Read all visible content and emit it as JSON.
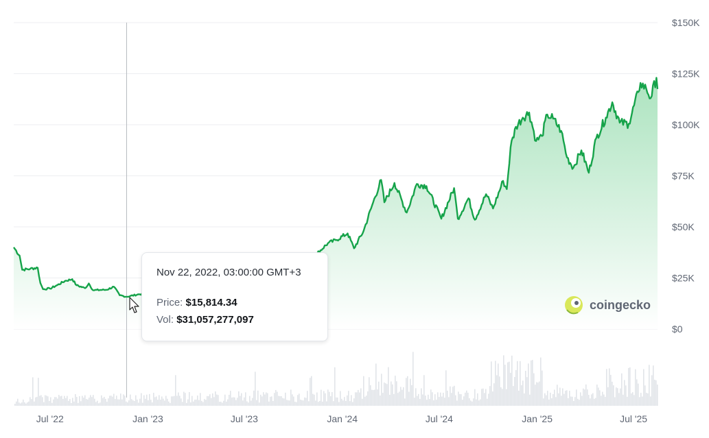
{
  "chart_data": {
    "type": "area",
    "title": "",
    "xlabel": "",
    "ylabel": "",
    "x_ticks": [
      "Jul '22",
      "Jan '23",
      "Jul '23",
      "Jan '24",
      "Jul '24",
      "Jan '25",
      "Jul '25"
    ],
    "y_ticks": [
      "$150K",
      "$125K",
      "$100K",
      "$75K",
      "$50K",
      "$25K",
      "$0"
    ],
    "ylim": [
      0,
      150000
    ],
    "xlim": [
      "2022-04-24",
      "2025-08-15"
    ],
    "grid": true,
    "series": [
      {
        "name": "Price",
        "color": "#16a34a",
        "points": [
          [
            "2022-04-24",
            40000
          ],
          [
            "2022-05-05",
            36000
          ],
          [
            "2022-05-10",
            29000
          ],
          [
            "2022-05-25",
            29500
          ],
          [
            "2022-06-08",
            30000
          ],
          [
            "2022-06-13",
            22500
          ],
          [
            "2022-06-18",
            19500
          ],
          [
            "2022-07-01",
            19800
          ],
          [
            "2022-07-15",
            21500
          ],
          [
            "2022-07-29",
            23500
          ],
          [
            "2022-08-12",
            24400
          ],
          [
            "2022-08-20",
            21400
          ],
          [
            "2022-09-05",
            20000
          ],
          [
            "2022-09-12",
            22300
          ],
          [
            "2022-09-20",
            19000
          ],
          [
            "2022-10-15",
            19200
          ],
          [
            "2022-10-29",
            20700
          ],
          [
            "2022-11-09",
            16500
          ],
          [
            "2022-11-22",
            15814.34
          ],
          [
            "2022-12-15",
            17000
          ],
          [
            "2023-01-10",
            17400
          ],
          [
            "2023-01-25",
            22800
          ],
          [
            "2023-02-20",
            24500
          ],
          [
            "2023-03-10",
            20200
          ],
          [
            "2023-03-20",
            28000
          ],
          [
            "2023-04-14",
            30400
          ],
          [
            "2023-05-10",
            27500
          ],
          [
            "2023-06-15",
            25000
          ],
          [
            "2023-06-23",
            30500
          ],
          [
            "2023-07-15",
            30300
          ],
          [
            "2023-08-17",
            26200
          ],
          [
            "2023-09-11",
            25200
          ],
          [
            "2023-10-01",
            27500
          ],
          [
            "2023-10-24",
            34500
          ],
          [
            "2023-11-15",
            37000
          ],
          [
            "2023-12-05",
            42000
          ],
          [
            "2023-12-20",
            43500
          ],
          [
            "2024-01-11",
            46800
          ],
          [
            "2024-01-23",
            39500
          ],
          [
            "2024-02-10",
            48000
          ],
          [
            "2024-02-28",
            62000
          ],
          [
            "2024-03-14",
            73000
          ],
          [
            "2024-03-20",
            62000
          ],
          [
            "2024-04-08",
            71500
          ],
          [
            "2024-05-01",
            57000
          ],
          [
            "2024-05-20",
            71000
          ],
          [
            "2024-06-07",
            70000
          ],
          [
            "2024-07-05",
            54000
          ],
          [
            "2024-07-29",
            69000
          ],
          [
            "2024-08-05",
            54000
          ],
          [
            "2024-08-25",
            64000
          ],
          [
            "2024-09-06",
            53500
          ],
          [
            "2024-09-27",
            66000
          ],
          [
            "2024-10-10",
            59000
          ],
          [
            "2024-10-29",
            72500
          ],
          [
            "2024-11-05",
            68500
          ],
          [
            "2024-11-12",
            89000
          ],
          [
            "2024-11-22",
            99000
          ],
          [
            "2024-12-05",
            103500
          ],
          [
            "2024-12-17",
            106000
          ],
          [
            "2024-12-30",
            92000
          ],
          [
            "2025-01-10",
            94500
          ],
          [
            "2025-01-20",
            105000
          ],
          [
            "2025-01-31",
            103000
          ],
          [
            "2025-02-15",
            97000
          ],
          [
            "2025-02-26",
            84000
          ],
          [
            "2025-03-10",
            79000
          ],
          [
            "2025-03-25",
            87500
          ],
          [
            "2025-04-08",
            76500
          ],
          [
            "2025-04-22",
            93500
          ],
          [
            "2025-05-10",
            103500
          ],
          [
            "2025-05-22",
            111000
          ],
          [
            "2025-06-05",
            101000
          ],
          [
            "2025-06-22",
            100500
          ],
          [
            "2025-07-10",
            116000
          ],
          [
            "2025-07-14",
            120500
          ],
          [
            "2025-07-25",
            117500
          ],
          [
            "2025-08-02",
            113000
          ],
          [
            "2025-08-13",
            123000
          ],
          [
            "2025-08-15",
            117500
          ]
        ]
      }
    ],
    "tooltip": {
      "date": "Nov 22, 2022, 03:00:00 GMT+3",
      "price_label": "Price:",
      "price_value": "$15,814.34",
      "vol_label": "Vol:",
      "vol_value": "$31,057,277,097",
      "hover_date": "2022-11-22"
    },
    "brand": "coingecko"
  },
  "colors": {
    "line": "#16a34a",
    "area_top": "#b9e8c8",
    "grid": "#eceef1",
    "volume": "#e1e4e8",
    "crosshair": "#b6bac0"
  }
}
